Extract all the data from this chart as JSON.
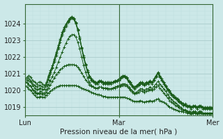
{
  "xlabel": "Pression niveau de la mer( hPa )",
  "bg_color": "#cce8e8",
  "plot_bg_color": "#cce8e8",
  "grid_color_major": "#aacccc",
  "grid_color_minor": "#bbdddd",
  "line_color": "#1a5c1a",
  "ylim": [
    1018.5,
    1025.2
  ],
  "yticks": [
    1019,
    1020,
    1021,
    1022,
    1023,
    1024
  ],
  "xtick_labels": [
    "Lun",
    "Mar",
    "Mer"
  ],
  "xtick_positions": [
    0,
    48,
    96
  ],
  "total_points": 97,
  "lines": [
    [
      1020.7,
      1020.8,
      1020.9,
      1020.8,
      1020.6,
      1020.5,
      1020.4,
      1020.5,
      1020.5,
      1020.4,
      1020.3,
      1020.5,
      1020.9,
      1021.2,
      1021.5,
      1021.9,
      1022.3,
      1022.7,
      1023.1,
      1023.5,
      1023.8,
      1024.0,
      1024.2,
      1024.35,
      1024.45,
      1024.35,
      1024.1,
      1023.7,
      1023.2,
      1022.6,
      1022.1,
      1021.6,
      1021.2,
      1020.9,
      1020.7,
      1020.6,
      1020.5,
      1020.5,
      1020.6,
      1020.6,
      1020.5,
      1020.5,
      1020.5,
      1020.5,
      1020.5,
      1020.5,
      1020.6,
      1020.6,
      1020.7,
      1020.8,
      1020.9,
      1020.9,
      1020.8,
      1020.6,
      1020.5,
      1020.3,
      1020.2,
      1020.3,
      1020.4,
      1020.5,
      1020.5,
      1020.4,
      1020.5,
      1020.5,
      1020.6,
      1020.5,
      1020.7,
      1020.9,
      1021.1,
      1020.9,
      1020.7,
      1020.5,
      1020.3,
      1020.1,
      1020.0,
      1019.8,
      1019.7,
      1019.6,
      1019.5,
      1019.4,
      1019.3,
      1019.2,
      1019.2,
      1019.1,
      1019.1,
      1019.0,
      1019.1,
      1019.1,
      1019.0,
      1019.1,
      1019.1,
      1019.0,
      1019.0,
      1019.0,
      1019.0,
      1019.0,
      1019.0
    ],
    [
      1020.6,
      1020.7,
      1020.7,
      1020.6,
      1020.4,
      1020.3,
      1020.2,
      1020.3,
      1020.3,
      1020.2,
      1020.2,
      1020.4,
      1020.8,
      1021.1,
      1021.4,
      1021.8,
      1022.2,
      1022.6,
      1023.0,
      1023.4,
      1023.7,
      1023.95,
      1024.15,
      1024.3,
      1024.4,
      1024.3,
      1024.05,
      1023.65,
      1023.15,
      1022.55,
      1022.0,
      1021.55,
      1021.15,
      1020.85,
      1020.65,
      1020.55,
      1020.45,
      1020.45,
      1020.55,
      1020.55,
      1020.45,
      1020.45,
      1020.45,
      1020.45,
      1020.45,
      1020.5,
      1020.55,
      1020.6,
      1020.65,
      1020.75,
      1020.85,
      1020.85,
      1020.75,
      1020.55,
      1020.45,
      1020.25,
      1020.15,
      1020.25,
      1020.35,
      1020.45,
      1020.45,
      1020.35,
      1020.45,
      1020.45,
      1020.55,
      1020.45,
      1020.65,
      1020.85,
      1021.05,
      1020.85,
      1020.65,
      1020.45,
      1020.25,
      1020.05,
      1019.95,
      1019.75,
      1019.65,
      1019.55,
      1019.45,
      1019.35,
      1019.25,
      1019.15,
      1019.15,
      1019.05,
      1019.05,
      1018.95,
      1019.05,
      1019.05,
      1018.95,
      1019.05,
      1019.05,
      1018.95,
      1018.95,
      1018.95,
      1018.95,
      1018.95,
      1018.95
    ],
    [
      1020.5,
      1020.6,
      1020.6,
      1020.5,
      1020.3,
      1020.15,
      1020.05,
      1020.1,
      1020.15,
      1020.05,
      1020.1,
      1020.3,
      1020.65,
      1021.0,
      1021.35,
      1021.7,
      1022.1,
      1022.5,
      1022.9,
      1023.3,
      1023.6,
      1023.85,
      1024.1,
      1024.25,
      1024.35,
      1024.25,
      1024.0,
      1023.6,
      1023.1,
      1022.5,
      1021.95,
      1021.5,
      1021.1,
      1020.8,
      1020.6,
      1020.5,
      1020.4,
      1020.4,
      1020.5,
      1020.5,
      1020.4,
      1020.4,
      1020.4,
      1020.4,
      1020.4,
      1020.45,
      1020.5,
      1020.55,
      1020.6,
      1020.7,
      1020.8,
      1020.8,
      1020.7,
      1020.5,
      1020.4,
      1020.2,
      1020.1,
      1020.2,
      1020.3,
      1020.4,
      1020.4,
      1020.3,
      1020.4,
      1020.4,
      1020.5,
      1020.4,
      1020.6,
      1020.8,
      1021.0,
      1020.8,
      1020.6,
      1020.4,
      1020.2,
      1020.0,
      1019.9,
      1019.7,
      1019.6,
      1019.5,
      1019.4,
      1019.3,
      1019.2,
      1019.1,
      1019.1,
      1019.0,
      1019.0,
      1018.9,
      1019.0,
      1019.0,
      1018.9,
      1019.0,
      1019.0,
      1018.9,
      1018.9,
      1018.9,
      1018.9,
      1018.9,
      1018.9
    ],
    [
      1020.5,
      1020.45,
      1020.35,
      1020.25,
      1020.05,
      1019.95,
      1019.85,
      1019.85,
      1019.95,
      1019.85,
      1019.85,
      1020.05,
      1020.35,
      1020.6,
      1020.85,
      1021.1,
      1021.4,
      1021.7,
      1022.0,
      1022.3,
      1022.6,
      1022.85,
      1023.1,
      1023.25,
      1023.35,
      1023.35,
      1023.2,
      1022.9,
      1022.5,
      1022.0,
      1021.5,
      1021.1,
      1020.75,
      1020.5,
      1020.3,
      1020.2,
      1020.15,
      1020.15,
      1020.2,
      1020.2,
      1020.15,
      1020.15,
      1020.15,
      1020.1,
      1020.1,
      1020.15,
      1020.2,
      1020.25,
      1020.3,
      1020.35,
      1020.4,
      1020.4,
      1020.35,
      1020.2,
      1020.1,
      1019.95,
      1019.85,
      1019.9,
      1020.0,
      1020.1,
      1020.1,
      1020.0,
      1020.1,
      1020.1,
      1020.2,
      1020.1,
      1020.25,
      1020.4,
      1020.55,
      1020.4,
      1020.25,
      1020.1,
      1019.95,
      1019.75,
      1019.6,
      1019.45,
      1019.35,
      1019.25,
      1019.15,
      1019.05,
      1018.95,
      1018.85,
      1018.85,
      1018.75,
      1018.75,
      1018.65,
      1018.75,
      1018.75,
      1018.65,
      1018.75,
      1018.75,
      1018.65,
      1018.65,
      1018.65,
      1018.65,
      1018.65,
      1018.65
    ],
    [
      1020.5,
      1020.45,
      1020.35,
      1020.25,
      1020.05,
      1019.9,
      1019.8,
      1019.8,
      1019.85,
      1019.75,
      1019.75,
      1019.9,
      1020.15,
      1020.35,
      1020.55,
      1020.75,
      1020.95,
      1021.1,
      1021.25,
      1021.35,
      1021.45,
      1021.5,
      1021.55,
      1021.55,
      1021.55,
      1021.55,
      1021.5,
      1021.4,
      1021.25,
      1021.05,
      1020.85,
      1020.65,
      1020.5,
      1020.35,
      1020.25,
      1020.2,
      1020.15,
      1020.15,
      1020.2,
      1020.2,
      1020.15,
      1020.15,
      1020.1,
      1020.1,
      1020.1,
      1020.15,
      1020.15,
      1020.2,
      1020.2,
      1020.25,
      1020.3,
      1020.3,
      1020.25,
      1020.15,
      1020.0,
      1019.9,
      1019.8,
      1019.85,
      1019.9,
      1020.0,
      1019.95,
      1019.9,
      1019.95,
      1020.0,
      1020.05,
      1020.0,
      1020.1,
      1020.2,
      1020.3,
      1020.15,
      1020.0,
      1019.85,
      1019.7,
      1019.55,
      1019.4,
      1019.3,
      1019.2,
      1019.1,
      1019.05,
      1018.95,
      1018.9,
      1018.8,
      1018.8,
      1018.7,
      1018.7,
      1018.6,
      1018.7,
      1018.7,
      1018.6,
      1018.7,
      1018.7,
      1018.6,
      1018.6,
      1018.6,
      1018.6,
      1018.6,
      1018.6
    ],
    [
      1020.3,
      1020.2,
      1020.1,
      1020.0,
      1019.85,
      1019.7,
      1019.6,
      1019.6,
      1019.65,
      1019.6,
      1019.6,
      1019.7,
      1019.85,
      1019.95,
      1020.05,
      1020.15,
      1020.2,
      1020.25,
      1020.3,
      1020.3,
      1020.3,
      1020.3,
      1020.3,
      1020.3,
      1020.3,
      1020.3,
      1020.3,
      1020.25,
      1020.2,
      1020.15,
      1020.1,
      1020.05,
      1020.0,
      1019.95,
      1019.9,
      1019.85,
      1019.8,
      1019.75,
      1019.75,
      1019.7,
      1019.65,
      1019.65,
      1019.6,
      1019.6,
      1019.6,
      1019.6,
      1019.6,
      1019.6,
      1019.6,
      1019.6,
      1019.6,
      1019.6,
      1019.55,
      1019.5,
      1019.45,
      1019.4,
      1019.35,
      1019.35,
      1019.35,
      1019.4,
      1019.35,
      1019.3,
      1019.35,
      1019.35,
      1019.4,
      1019.35,
      1019.4,
      1019.45,
      1019.5,
      1019.4,
      1019.35,
      1019.3,
      1019.2,
      1019.1,
      1019.0,
      1018.95,
      1018.9,
      1018.85,
      1018.8,
      1018.75,
      1018.75,
      1018.7,
      1018.7,
      1018.65,
      1018.65,
      1018.6,
      1018.65,
      1018.65,
      1018.6,
      1018.65,
      1018.65,
      1018.6,
      1018.6,
      1018.6,
      1018.6,
      1018.6,
      1018.6
    ]
  ],
  "vline_positions": [
    48
  ],
  "vline_color": "#336633"
}
